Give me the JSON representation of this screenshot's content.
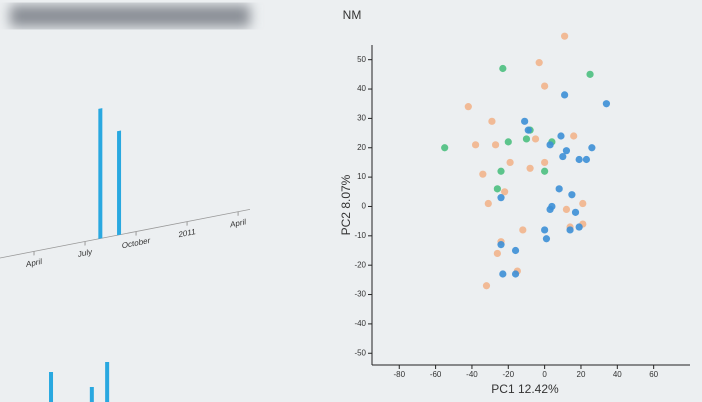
{
  "chart_data": [
    {
      "type": "bar",
      "color": "#29a8e0",
      "x": [
        3.9,
        5.0
      ],
      "values": [
        100,
        80
      ],
      "xlim": [
        -2,
        12.7
      ],
      "ylim": [
        0,
        100
      ],
      "xticks": [
        {
          "value": 0,
          "label": "April"
        },
        {
          "value": 3,
          "label": "July"
        },
        {
          "value": 6,
          "label": "October"
        },
        {
          "value": 9,
          "label": "2011"
        },
        {
          "value": 12,
          "label": "April"
        }
      ]
    },
    {
      "type": "scatter",
      "title": "NM",
      "xlabel": "PC1 12.42%",
      "ylabel": "PC2 8.07%",
      "xlim": [
        -95,
        80
      ],
      "ylim": [
        -54,
        55
      ],
      "xticks": [
        -80,
        -60,
        -40,
        -20,
        0,
        20,
        40,
        60
      ],
      "yticks": [
        -50,
        -40,
        -30,
        -20,
        -10,
        0,
        10,
        20,
        30,
        40,
        50
      ],
      "series": [
        {
          "color": "#f2b48c",
          "x": [
            11,
            -3,
            0,
            -42,
            -29,
            -38,
            -27,
            -5,
            16,
            -34,
            -19,
            0,
            -31,
            -22,
            -8,
            21,
            -12,
            -24,
            -26,
            -32,
            21,
            14,
            -15,
            12
          ],
          "values": [
            58,
            49,
            41,
            34,
            29,
            21,
            21,
            23,
            24,
            11,
            15,
            15,
            1,
            5,
            13,
            1,
            -8,
            -12,
            -16,
            -27,
            -6,
            -7,
            -22,
            -1
          ]
        },
        {
          "color": "#4cbf7f",
          "x": [
            -23,
            25,
            -55,
            -8,
            -10,
            0,
            -24,
            -26,
            -20,
            4
          ],
          "values": [
            47,
            45,
            20,
            26,
            23,
            12,
            12,
            6,
            22,
            22
          ]
        },
        {
          "color": "#3d8fd6",
          "x": [
            11,
            34,
            -11,
            9,
            12,
            19,
            23,
            26,
            10,
            3,
            -24,
            8,
            4,
            3,
            15,
            14,
            17,
            0,
            1,
            -24,
            -23,
            -16,
            -9,
            -16,
            19
          ],
          "values": [
            38,
            35,
            29,
            24,
            19,
            16,
            16,
            20,
            17,
            21,
            3,
            6,
            0,
            -1,
            4,
            -8,
            -2,
            -8,
            -11,
            -13,
            -23,
            -23,
            26,
            -15,
            -7
          ]
        }
      ]
    },
    {
      "type": "bar",
      "color": "#29a8e0",
      "x": [
        1.0,
        3.4,
        4.3
      ],
      "values": [
        30,
        15,
        40
      ],
      "xlim": [
        -2,
        12.7
      ],
      "ylim": [
        0,
        50
      ]
    }
  ]
}
